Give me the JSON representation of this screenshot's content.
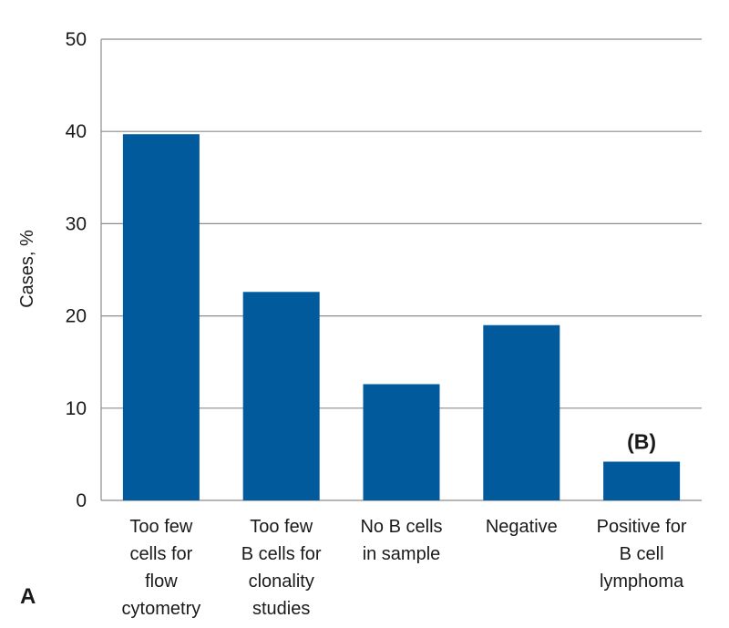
{
  "chart_data": {
    "type": "bar",
    "panel_label": "A",
    "title": "",
    "xlabel": "",
    "ylabel": "Cases, %",
    "ylim": [
      0,
      50
    ],
    "yticks": [
      0,
      10,
      20,
      30,
      40,
      50
    ],
    "grid": true,
    "categories": [
      [
        "Too few",
        "cells for",
        "flow",
        "cytometry"
      ],
      [
        "Too few",
        "B cells for",
        "clonality",
        "studies"
      ],
      [
        "No B cells",
        "in sample"
      ],
      [
        "Negative"
      ],
      [
        "Positive for",
        "B cell",
        "lymphoma"
      ]
    ],
    "values": [
      39.7,
      22.6,
      12.6,
      19.0,
      4.2
    ],
    "bar_color": "#005a9c",
    "annotations": [
      {
        "category_index": 4,
        "text": "(B)"
      }
    ]
  }
}
